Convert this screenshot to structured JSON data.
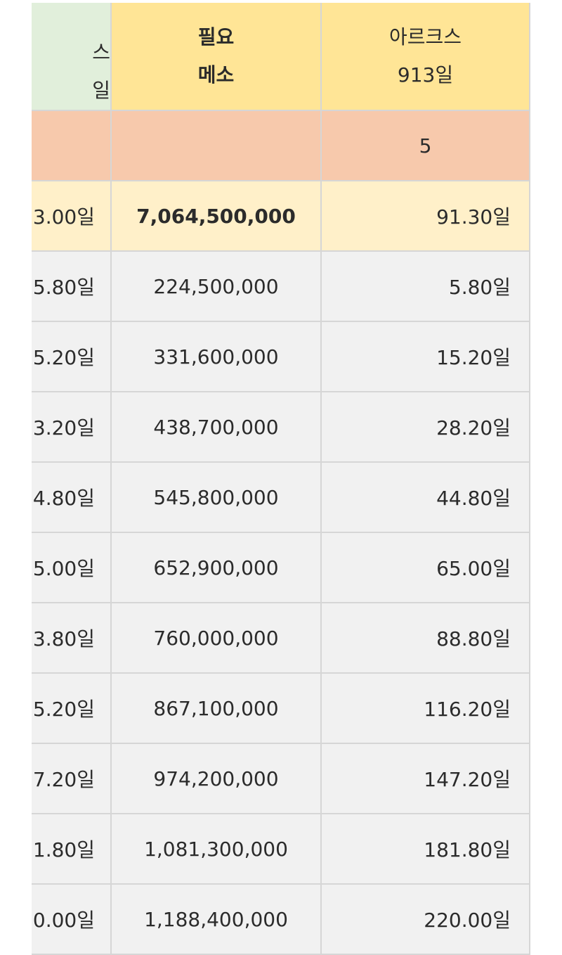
{
  "header": {
    "col0_line1": "스",
    "col0_line2": "일",
    "col1_line1": "필요",
    "col1_line2": "메소",
    "col2_line1": "아르크스",
    "col2_line2": "913일"
  },
  "level_row": {
    "col0": "",
    "col1": "",
    "col2": "5"
  },
  "total_row": {
    "col0": "3.00일",
    "col1": "7,064,500,000",
    "col2": "91.30일"
  },
  "rows": [
    {
      "col0": "5.80일",
      "col1": "224,500,000",
      "col2": "5.80일"
    },
    {
      "col0": "5.20일",
      "col1": "331,600,000",
      "col2": "15.20일"
    },
    {
      "col0": "3.20일",
      "col1": "438,700,000",
      "col2": "28.20일"
    },
    {
      "col0": "4.80일",
      "col1": "545,800,000",
      "col2": "44.80일"
    },
    {
      "col0": "5.00일",
      "col1": "652,900,000",
      "col2": "65.00일"
    },
    {
      "col0": "3.80일",
      "col1": "760,000,000",
      "col2": "88.80일"
    },
    {
      "col0": "5.20일",
      "col1": "867,100,000",
      "col2": "116.20일"
    },
    {
      "col0": "7.20일",
      "col1": "974,200,000",
      "col2": "147.20일"
    },
    {
      "col0": "1.80일",
      "col1": "1,081,300,000",
      "col2": "181.80일"
    },
    {
      "col0": "0.00일",
      "col1": "1,188,400,000",
      "col2": "220.00일"
    }
  ],
  "colors": {
    "header_green": "#e1efdb",
    "header_yellow": "#ffe596",
    "level_row_peach": "#f7c9ac",
    "total_row_cream": "#fff0c9",
    "body_gray": "#f1f1f1",
    "grid_line": "#d6d6d6"
  }
}
